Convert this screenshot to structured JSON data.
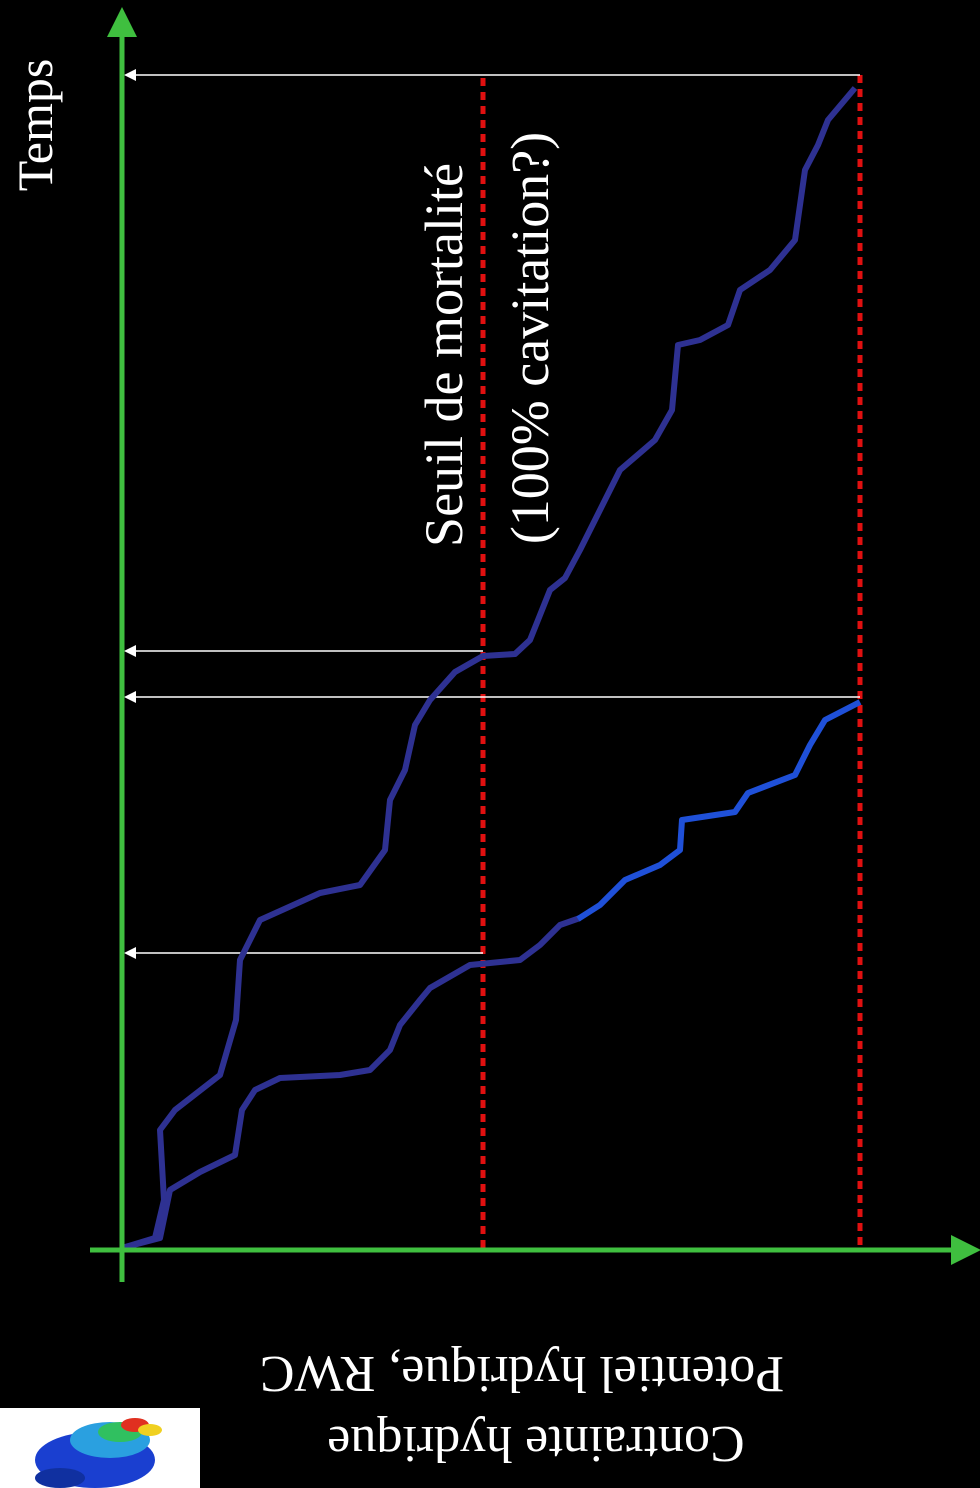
{
  "axis_label_y": "Temps",
  "threshold_label": [
    "Seuil de mortalité",
    "(100% cavitation?)"
  ],
  "axis_label_x": [
    "Potentiel hydrique, RWC",
    "Contrainte hydrique"
  ]
}
